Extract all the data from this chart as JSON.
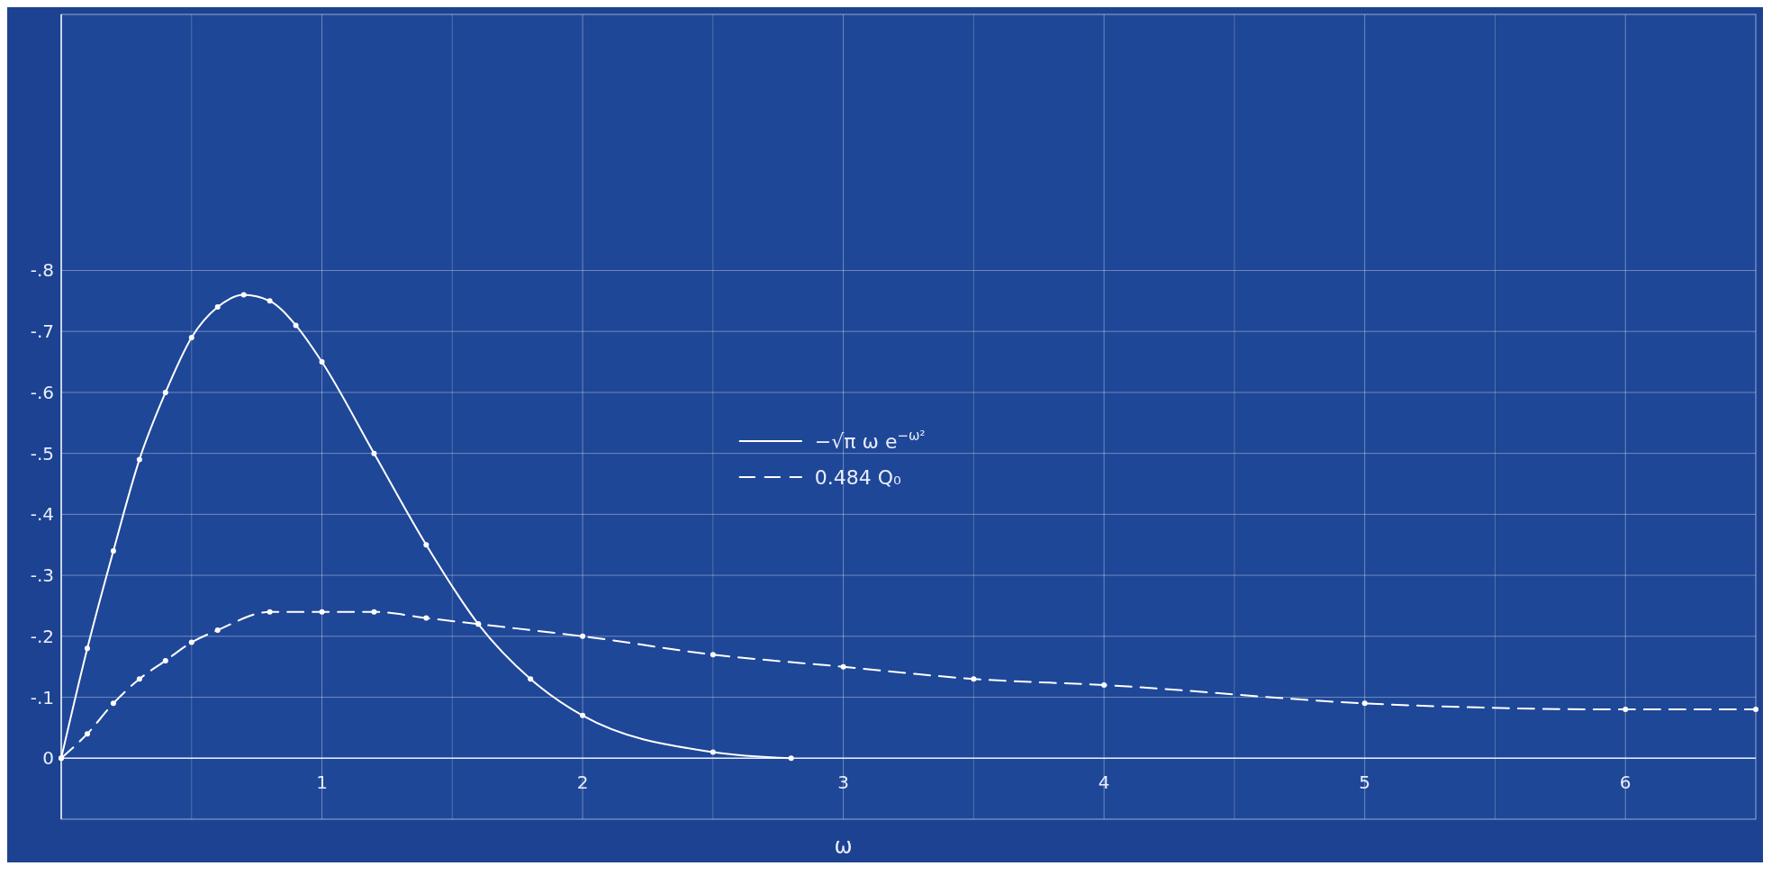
{
  "chart_data": {
    "type": "line",
    "xlabel": "ω",
    "xlim": [
      0,
      6.5
    ],
    "ylim": [
      0.1,
      -1.22
    ],
    "xticks": [
      {
        "value": 0,
        "label": null
      },
      {
        "value": 0.5,
        "label": null
      },
      1,
      {
        "value": 1.5,
        "label": null
      },
      2,
      {
        "value": 2.5,
        "label": null
      },
      3,
      {
        "value": 3.5,
        "label": null
      },
      4,
      {
        "value": 4.5,
        "label": null
      },
      5,
      {
        "value": 5.5,
        "label": null
      },
      6
    ],
    "yticks": [
      0,
      {
        "value": -0.1,
        "label": "-.1"
      },
      {
        "value": -0.2,
        "label": "-.2"
      },
      {
        "value": -0.3,
        "label": "-.3"
      },
      {
        "value": -0.4,
        "label": "-.4"
      },
      {
        "value": -0.5,
        "label": "-.5"
      },
      {
        "value": -0.6,
        "label": "-.6"
      },
      {
        "value": -0.7,
        "label": "-.7"
      },
      {
        "value": -0.8,
        "label": "-.8"
      }
    ],
    "grid": true,
    "legend": "center",
    "marker": "circle",
    "series": [
      {
        "name": "−√π ω e$^{−ω²}$",
        "color": "#ffffff",
        "line_style": "solid",
        "x": [
          0,
          0.1,
          0.2,
          0.3,
          0.4,
          0.5,
          0.6,
          0.7,
          0.8,
          0.9,
          1.0,
          1.2,
          1.4,
          1.6,
          1.8,
          2.0,
          2.5,
          2.8
        ],
        "values": [
          0,
          -0.18,
          -0.34,
          -0.49,
          -0.6,
          -0.69,
          -0.74,
          -0.76,
          -0.75,
          -0.71,
          -0.65,
          -0.5,
          -0.35,
          -0.22,
          -0.13,
          -0.07,
          -0.01,
          0
        ]
      },
      {
        "name": "0.484 Q₀",
        "color": "#ffffff",
        "line_style": "dashed",
        "x": [
          0,
          0.1,
          0.2,
          0.3,
          0.4,
          0.5,
          0.6,
          0.8,
          1.0,
          1.2,
          1.4,
          1.6,
          2.0,
          2.5,
          3.0,
          3.5,
          4.0,
          5.0,
          6.0,
          6.5
        ],
        "values": [
          0,
          -0.04,
          -0.09,
          -0.13,
          -0.16,
          -0.19,
          -0.21,
          -0.24,
          -0.24,
          -0.24,
          -0.23,
          -0.22,
          -0.2,
          -0.17,
          -0.15,
          -0.13,
          -0.12,
          -0.09,
          -0.08,
          -0.08
        ]
      }
    ]
  }
}
